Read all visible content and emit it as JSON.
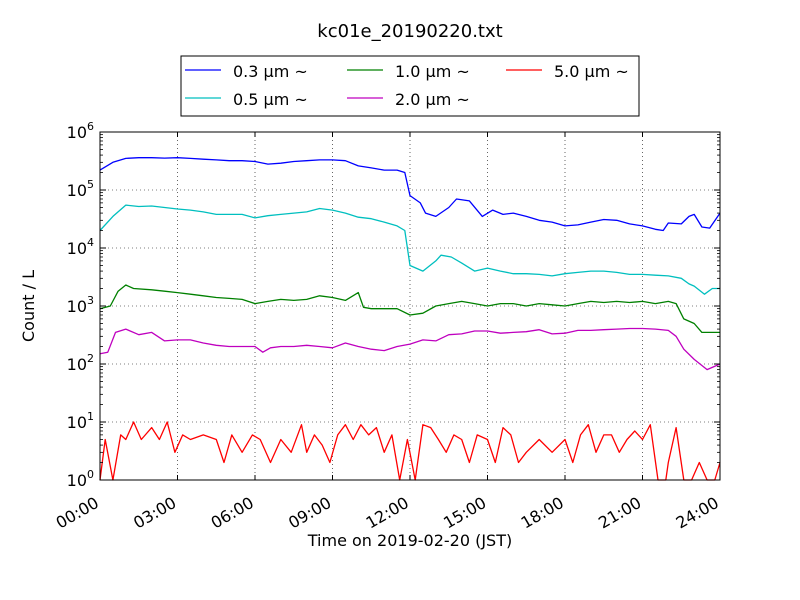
{
  "chart_data": {
    "type": "line",
    "title": "kc01e_20190220.txt",
    "xlabel": "Time on 2019-02-20 (JST)",
    "ylabel": "Count / L",
    "yscale": "log",
    "ylim": [
      1,
      1000000
    ],
    "xlim": [
      0,
      24
    ],
    "x_ticks": [
      {
        "v": 0,
        "label": "00:00"
      },
      {
        "v": 3,
        "label": "03:00"
      },
      {
        "v": 6,
        "label": "06:00"
      },
      {
        "v": 9,
        "label": "09:00"
      },
      {
        "v": 12,
        "label": "12:00"
      },
      {
        "v": 15,
        "label": "15:00"
      },
      {
        "v": 18,
        "label": "18:00"
      },
      {
        "v": 21,
        "label": "21:00"
      },
      {
        "v": 24,
        "label": "24:00"
      }
    ],
    "y_ticks": [
      {
        "v": 1,
        "base": "10",
        "exp": "0"
      },
      {
        "v": 10,
        "base": "10",
        "exp": "1"
      },
      {
        "v": 100,
        "base": "10",
        "exp": "2"
      },
      {
        "v": 1000,
        "base": "10",
        "exp": "3"
      },
      {
        "v": 10000,
        "base": "10",
        "exp": "4"
      },
      {
        "v": 100000,
        "base": "10",
        "exp": "5"
      },
      {
        "v": 1000000,
        "base": "10",
        "exp": "6"
      }
    ],
    "grid": true,
    "legend_position": "top-center",
    "series": [
      {
        "name": "0.3 μm ~",
        "color": "#0000ff",
        "points": [
          [
            0,
            220000
          ],
          [
            0.5,
            300000
          ],
          [
            1,
            350000
          ],
          [
            1.5,
            360000
          ],
          [
            2,
            360000
          ],
          [
            2.5,
            355000
          ],
          [
            3,
            360000
          ],
          [
            3.5,
            350000
          ],
          [
            4,
            340000
          ],
          [
            4.5,
            330000
          ],
          [
            5,
            320000
          ],
          [
            5.5,
            320000
          ],
          [
            6,
            310000
          ],
          [
            6.5,
            280000
          ],
          [
            7,
            290000
          ],
          [
            7.5,
            310000
          ],
          [
            8,
            320000
          ],
          [
            8.5,
            330000
          ],
          [
            9,
            330000
          ],
          [
            9.5,
            320000
          ],
          [
            10,
            260000
          ],
          [
            10.5,
            240000
          ],
          [
            11,
            220000
          ],
          [
            11.5,
            220000
          ],
          [
            11.8,
            200000
          ],
          [
            12,
            80000
          ],
          [
            12.4,
            60000
          ],
          [
            12.6,
            40000
          ],
          [
            13,
            35000
          ],
          [
            13.5,
            50000
          ],
          [
            13.8,
            70000
          ],
          [
            14.3,
            65000
          ],
          [
            14.8,
            35000
          ],
          [
            15.2,
            45000
          ],
          [
            15.6,
            38000
          ],
          [
            16,
            40000
          ],
          [
            16.5,
            35000
          ],
          [
            17,
            30000
          ],
          [
            17.5,
            28000
          ],
          [
            18,
            24000
          ],
          [
            18.5,
            25000
          ],
          [
            19,
            28000
          ],
          [
            19.5,
            31000
          ],
          [
            20,
            30000
          ],
          [
            20.5,
            26000
          ],
          [
            21,
            24000
          ],
          [
            21.5,
            21000
          ],
          [
            21.8,
            20000
          ],
          [
            22,
            27000
          ],
          [
            22.5,
            26000
          ],
          [
            22.8,
            35000
          ],
          [
            23,
            38000
          ],
          [
            23.3,
            23000
          ],
          [
            23.6,
            22000
          ],
          [
            24,
            40000
          ]
        ]
      },
      {
        "name": "0.5 μm ~",
        "color": "#00bfbf",
        "points": [
          [
            0,
            20000
          ],
          [
            0.5,
            35000
          ],
          [
            1,
            55000
          ],
          [
            1.5,
            52000
          ],
          [
            2,
            53000
          ],
          [
            2.5,
            50000
          ],
          [
            3,
            47000
          ],
          [
            3.5,
            45000
          ],
          [
            4,
            42000
          ],
          [
            4.5,
            38000
          ],
          [
            5,
            38000
          ],
          [
            5.5,
            38000
          ],
          [
            6,
            33000
          ],
          [
            6.5,
            36000
          ],
          [
            7,
            38000
          ],
          [
            7.5,
            40000
          ],
          [
            8,
            42000
          ],
          [
            8.5,
            48000
          ],
          [
            9,
            45000
          ],
          [
            9.5,
            40000
          ],
          [
            10,
            34000
          ],
          [
            10.5,
            32000
          ],
          [
            11,
            28000
          ],
          [
            11.5,
            24000
          ],
          [
            11.8,
            20000
          ],
          [
            12,
            5000
          ],
          [
            12.5,
            4000
          ],
          [
            13,
            6000
          ],
          [
            13.2,
            7500
          ],
          [
            13.6,
            7000
          ],
          [
            14,
            5500
          ],
          [
            14.5,
            4000
          ],
          [
            15,
            4500
          ],
          [
            15.5,
            4000
          ],
          [
            16,
            3600
          ],
          [
            16.5,
            3600
          ],
          [
            17,
            3500
          ],
          [
            17.5,
            3300
          ],
          [
            18,
            3600
          ],
          [
            18.5,
            3800
          ],
          [
            19,
            4000
          ],
          [
            19.5,
            4000
          ],
          [
            20,
            3800
          ],
          [
            20.5,
            3500
          ],
          [
            21,
            3500
          ],
          [
            21.5,
            3400
          ],
          [
            22,
            3300
          ],
          [
            22.5,
            3000
          ],
          [
            22.8,
            2400
          ],
          [
            23,
            2200
          ],
          [
            23.4,
            1600
          ],
          [
            23.7,
            2000
          ],
          [
            24,
            2000
          ]
        ]
      },
      {
        "name": "1.0 μm ~",
        "color": "#008000",
        "points": [
          [
            0,
            900
          ],
          [
            0.4,
            1000
          ],
          [
            0.7,
            1800
          ],
          [
            1,
            2300
          ],
          [
            1.3,
            2000
          ],
          [
            2,
            1900
          ],
          [
            2.5,
            1800
          ],
          [
            3,
            1700
          ],
          [
            3.5,
            1600
          ],
          [
            4,
            1500
          ],
          [
            4.5,
            1400
          ],
          [
            5,
            1350
          ],
          [
            5.5,
            1300
          ],
          [
            6,
            1100
          ],
          [
            6.5,
            1200
          ],
          [
            7,
            1300
          ],
          [
            7.5,
            1250
          ],
          [
            8,
            1300
          ],
          [
            8.5,
            1500
          ],
          [
            9,
            1400
          ],
          [
            9.5,
            1250
          ],
          [
            10,
            1700
          ],
          [
            10.2,
            950
          ],
          [
            10.5,
            900
          ],
          [
            11,
            900
          ],
          [
            11.5,
            900
          ],
          [
            12,
            700
          ],
          [
            12.5,
            750
          ],
          [
            13,
            1000
          ],
          [
            13.5,
            1100
          ],
          [
            14,
            1200
          ],
          [
            14.5,
            1100
          ],
          [
            15,
            1000
          ],
          [
            15.5,
            1100
          ],
          [
            16,
            1100
          ],
          [
            16.5,
            1000
          ],
          [
            17,
            1100
          ],
          [
            17.5,
            1050
          ],
          [
            18,
            1000
          ],
          [
            18.5,
            1100
          ],
          [
            19,
            1200
          ],
          [
            19.5,
            1150
          ],
          [
            20,
            1200
          ],
          [
            20.5,
            1150
          ],
          [
            21,
            1200
          ],
          [
            21.5,
            1100
          ],
          [
            22,
            1200
          ],
          [
            22.3,
            1100
          ],
          [
            22.6,
            600
          ],
          [
            23,
            500
          ],
          [
            23.3,
            350
          ],
          [
            23.6,
            350
          ],
          [
            24,
            350
          ]
        ]
      },
      {
        "name": "2.0 μm ~",
        "color": "#bf00bf",
        "points": [
          [
            0,
            150
          ],
          [
            0.3,
            160
          ],
          [
            0.6,
            350
          ],
          [
            1,
            400
          ],
          [
            1.5,
            320
          ],
          [
            2,
            350
          ],
          [
            2.5,
            250
          ],
          [
            3,
            260
          ],
          [
            3.5,
            260
          ],
          [
            4,
            230
          ],
          [
            4.5,
            210
          ],
          [
            5,
            200
          ],
          [
            5.5,
            200
          ],
          [
            6,
            200
          ],
          [
            6.3,
            160
          ],
          [
            6.6,
            190
          ],
          [
            7,
            200
          ],
          [
            7.5,
            200
          ],
          [
            8,
            210
          ],
          [
            8.5,
            200
          ],
          [
            9,
            190
          ],
          [
            9.5,
            230
          ],
          [
            10,
            200
          ],
          [
            10.5,
            180
          ],
          [
            11,
            170
          ],
          [
            11.5,
            200
          ],
          [
            12,
            220
          ],
          [
            12.5,
            260
          ],
          [
            13,
            250
          ],
          [
            13.5,
            320
          ],
          [
            14,
            330
          ],
          [
            14.5,
            370
          ],
          [
            15,
            370
          ],
          [
            15.5,
            340
          ],
          [
            16,
            350
          ],
          [
            16.5,
            360
          ],
          [
            17,
            390
          ],
          [
            17.5,
            330
          ],
          [
            18,
            340
          ],
          [
            18.5,
            380
          ],
          [
            19,
            380
          ],
          [
            19.5,
            390
          ],
          [
            20,
            400
          ],
          [
            20.5,
            410
          ],
          [
            21,
            410
          ],
          [
            21.5,
            400
          ],
          [
            22,
            380
          ],
          [
            22.3,
            300
          ],
          [
            22.6,
            180
          ],
          [
            23,
            120
          ],
          [
            23.5,
            80
          ],
          [
            24,
            100
          ]
        ]
      },
      {
        "name": "5.0 μm ~",
        "color": "#ff0000",
        "points": [
          [
            0,
            1
          ],
          [
            0.2,
            5
          ],
          [
            0.5,
            1
          ],
          [
            0.8,
            6
          ],
          [
            1,
            5
          ],
          [
            1.3,
            10
          ],
          [
            1.6,
            5
          ],
          [
            2,
            8
          ],
          [
            2.3,
            5
          ],
          [
            2.6,
            10
          ],
          [
            2.9,
            3
          ],
          [
            3.2,
            6
          ],
          [
            3.5,
            5
          ],
          [
            4,
            6
          ],
          [
            4.5,
            5
          ],
          [
            4.8,
            2
          ],
          [
            5.1,
            6
          ],
          [
            5.5,
            3
          ],
          [
            5.9,
            6
          ],
          [
            6.2,
            5
          ],
          [
            6.6,
            2
          ],
          [
            7,
            5
          ],
          [
            7.4,
            3
          ],
          [
            7.8,
            9
          ],
          [
            8,
            3
          ],
          [
            8.3,
            6
          ],
          [
            8.6,
            4
          ],
          [
            8.9,
            2
          ],
          [
            9.2,
            6
          ],
          [
            9.5,
            9
          ],
          [
            9.8,
            5
          ],
          [
            10.1,
            9
          ],
          [
            10.4,
            6
          ],
          [
            10.7,
            8
          ],
          [
            11,
            3
          ],
          [
            11.3,
            6
          ],
          [
            11.6,
            1
          ],
          [
            11.9,
            5
          ],
          [
            12.2,
            1
          ],
          [
            12.5,
            9
          ],
          [
            12.8,
            8
          ],
          [
            13.1,
            5
          ],
          [
            13.4,
            3
          ],
          [
            13.7,
            6
          ],
          [
            14,
            5
          ],
          [
            14.3,
            2
          ],
          [
            14.6,
            6
          ],
          [
            15,
            5
          ],
          [
            15.3,
            2
          ],
          [
            15.6,
            8
          ],
          [
            15.9,
            6
          ],
          [
            16.2,
            2
          ],
          [
            16.5,
            3
          ],
          [
            17,
            5
          ],
          [
            17.5,
            3
          ],
          [
            18,
            5
          ],
          [
            18.3,
            2
          ],
          [
            18.6,
            6
          ],
          [
            18.9,
            9
          ],
          [
            19.2,
            3
          ],
          [
            19.5,
            6
          ],
          [
            19.8,
            6
          ],
          [
            20.1,
            3
          ],
          [
            20.4,
            5
          ],
          [
            20.7,
            7
          ],
          [
            21,
            5
          ],
          [
            21.3,
            9
          ],
          [
            21.6,
            1
          ],
          [
            21.9,
            1
          ],
          [
            22,
            2
          ],
          [
            22.3,
            8
          ],
          [
            22.6,
            1
          ],
          [
            22.9,
            1
          ],
          [
            23.2,
            2
          ],
          [
            23.5,
            1
          ],
          [
            23.8,
            1
          ],
          [
            24,
            2
          ]
        ]
      }
    ]
  }
}
